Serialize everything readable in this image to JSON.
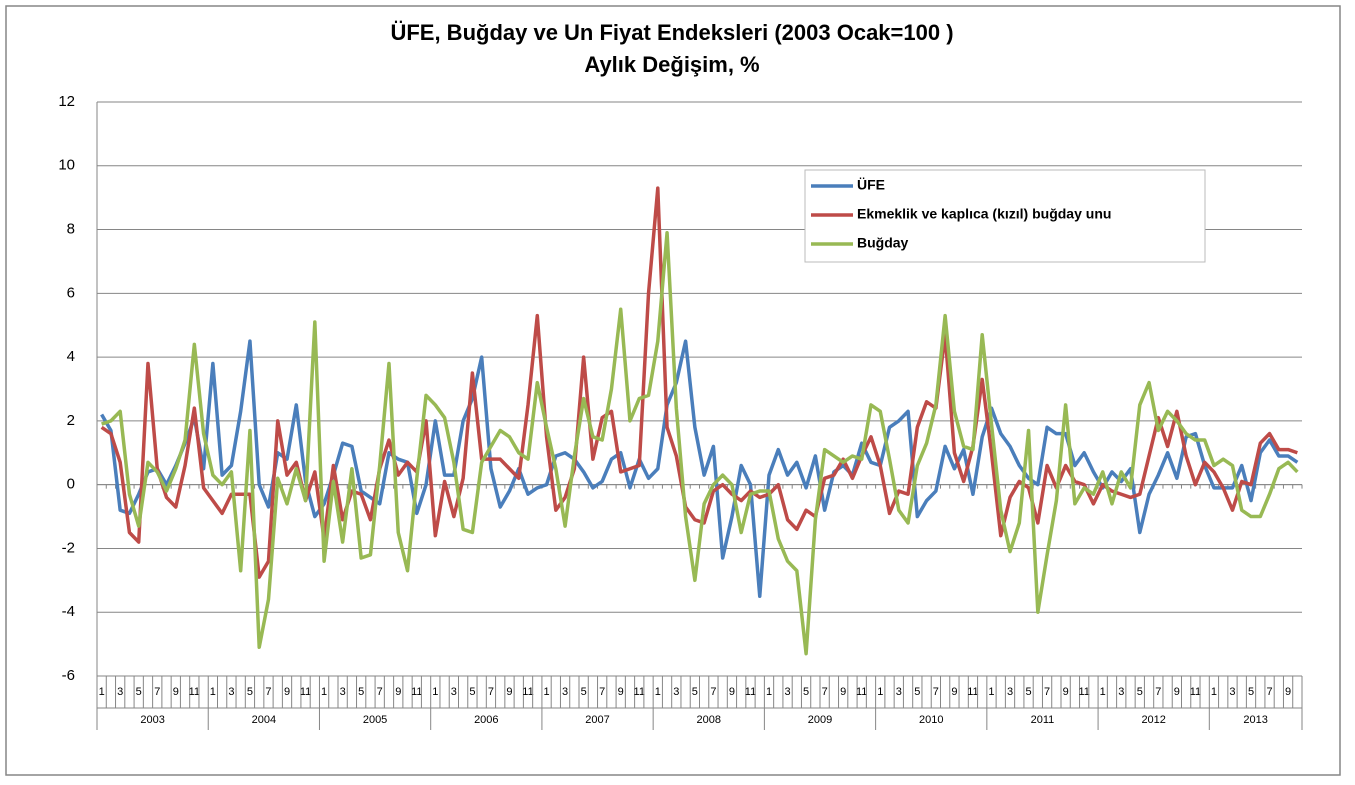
{
  "chart_data": {
    "type": "line",
    "title": "ÜFE, Buğday ve Un Fiyat Endeksleri (2003 Ocak=100 )",
    "subtitle": "Aylık Değişim, %",
    "categories": [
      "1",
      null,
      "3",
      null,
      "5",
      null,
      "7",
      null,
      "9",
      null,
      "11",
      null,
      "1",
      null,
      "3",
      null,
      "5",
      null,
      "7",
      null,
      "9",
      null,
      "11",
      null,
      "1",
      null,
      "3",
      null,
      "5",
      null,
      "7",
      null,
      "9",
      null,
      "11",
      null,
      "1",
      null,
      "3",
      null,
      "5",
      null,
      "7",
      null,
      "9",
      null,
      "11",
      null,
      "1",
      null,
      "3",
      null,
      "5",
      null,
      "7",
      null,
      "9",
      null,
      "11",
      null,
      "1",
      null,
      "3",
      null,
      "5",
      null,
      "7",
      null,
      "9",
      null,
      "11",
      null,
      "1",
      null,
      "3",
      null,
      "5",
      null,
      "7",
      null,
      "9",
      null,
      "11",
      null,
      "1",
      null,
      "3",
      null,
      "5",
      null,
      "7",
      null,
      "9",
      null,
      "11",
      null,
      "1",
      null,
      "3",
      null,
      "5",
      null,
      "7",
      null,
      "9",
      null,
      "11",
      null,
      "1",
      null,
      "3",
      null,
      "5",
      null,
      "7",
      null,
      "9",
      null,
      "11",
      null,
      "1",
      null,
      "3",
      null,
      "5",
      null,
      "7",
      null,
      "9",
      null
    ],
    "years": [
      "2003",
      "2004",
      "2005",
      "2006",
      "2007",
      "2008",
      "2009",
      "2010",
      "2011",
      "2012",
      "2013"
    ],
    "series": [
      {
        "name": "ÜFE",
        "color": "#4a7ebb",
        "values": [
          2.2,
          1.7,
          -0.8,
          -0.9,
          -0.3,
          0.4,
          0.5,
          0.0,
          0.6,
          1.3,
          2.1,
          0.5,
          3.8,
          0.3,
          0.6,
          2.3,
          4.5,
          0.0,
          -0.7,
          1.0,
          0.8,
          2.5,
          0.1,
          -1.0,
          -0.6,
          0.3,
          1.3,
          1.2,
          -0.2,
          -0.4,
          -0.6,
          1.0,
          0.8,
          0.7,
          -0.9,
          0.0,
          2.0,
          0.3,
          0.3,
          2.0,
          2.7,
          4.0,
          0.5,
          -0.7,
          -0.2,
          0.5,
          -0.3,
          -0.1,
          0.0,
          0.9,
          1.0,
          0.8,
          0.4,
          -0.1,
          0.1,
          0.8,
          1.0,
          -0.1,
          0.8,
          0.2,
          0.5,
          2.5,
          3.2,
          4.5,
          1.8,
          0.3,
          1.2,
          -2.3,
          -1.0,
          0.6,
          0.0,
          -3.5,
          0.3,
          1.1,
          0.3,
          0.7,
          -0.1,
          0.9,
          -0.8,
          0.4,
          0.6,
          0.3,
          1.3,
          0.7,
          0.6,
          1.8,
          2.0,
          2.3,
          -1.0,
          -0.5,
          -0.2,
          1.2,
          0.5,
          1.1,
          -0.3,
          1.5,
          2.4,
          1.6,
          1.2,
          0.6,
          0.2,
          0.0,
          1.8,
          1.6,
          1.6,
          0.6,
          1.0,
          0.4,
          -0.1,
          0.4,
          0.1,
          0.5,
          -1.5,
          -0.3,
          0.3,
          1.0,
          0.2,
          1.5,
          1.6,
          0.6,
          -0.1,
          -0.1,
          -0.1,
          0.6,
          -0.5,
          1.0,
          1.4,
          0.9,
          0.9,
          0.7
        ]
      },
      {
        "name": "Ekmeklik ve kaplıca (kızıl) buğday unu",
        "color": "#be4b48",
        "values": [
          1.8,
          1.6,
          0.7,
          -1.5,
          -1.8,
          3.8,
          0.5,
          -0.4,
          -0.7,
          0.6,
          2.4,
          -0.1,
          -0.5,
          -0.9,
          -0.3,
          -0.3,
          -0.3,
          -2.9,
          -2.4,
          2.0,
          0.3,
          0.7,
          -0.5,
          0.4,
          -1.7,
          0.6,
          -1.1,
          -0.2,
          -0.3,
          -1.1,
          0.5,
          1.4,
          0.3,
          0.7,
          0.4,
          2.0,
          -1.6,
          0.1,
          -1.0,
          0.2,
          3.5,
          0.8,
          0.8,
          0.8,
          0.5,
          0.2,
          2.5,
          5.3,
          1.5,
          -0.8,
          -0.4,
          0.5,
          4.0,
          0.8,
          2.1,
          2.3,
          0.4,
          0.5,
          0.6,
          6.0,
          9.3,
          1.8,
          0.9,
          -0.7,
          -1.1,
          -1.2,
          -0.2,
          0.0,
          -0.3,
          -0.5,
          -0.2,
          -0.4,
          -0.3,
          0.0,
          -1.1,
          -1.4,
          -0.8,
          -1.0,
          0.2,
          0.3,
          0.8,
          0.2,
          0.9,
          1.5,
          0.6,
          -0.9,
          -0.2,
          -0.3,
          1.8,
          2.6,
          2.4,
          4.7,
          1.0,
          0.1,
          1.2,
          3.3,
          1.0,
          -1.6,
          -0.4,
          0.1,
          -0.1,
          -1.2,
          0.6,
          -0.1,
          0.6,
          0.1,
          0.0,
          -0.6,
          0.0,
          -0.2,
          -0.3,
          -0.4,
          -0.3,
          0.9,
          2.1,
          1.2,
          2.3,
          0.9,
          0.0,
          0.7,
          0.4,
          -0.1,
          -0.8,
          0.1,
          0.0,
          1.3,
          1.6,
          1.1,
          1.1,
          1.0
        ]
      },
      {
        "name": "Buğday",
        "color": "#98b954",
        "values": [
          1.9,
          2.0,
          2.3,
          -0.3,
          -1.3,
          0.7,
          0.4,
          -0.2,
          0.5,
          1.4,
          4.4,
          1.6,
          0.3,
          0.0,
          0.4,
          -2.7,
          1.7,
          -5.1,
          -3.6,
          0.2,
          -0.6,
          0.5,
          -0.5,
          5.1,
          -2.4,
          0.1,
          -1.8,
          0.5,
          -2.3,
          -2.2,
          0.6,
          3.8,
          -1.5,
          -2.7,
          0.2,
          2.8,
          2.5,
          2.1,
          0.7,
          -1.4,
          -1.5,
          0.7,
          1.2,
          1.7,
          1.5,
          1.0,
          0.8,
          3.2,
          1.8,
          0.5,
          -1.3,
          0.9,
          2.7,
          1.5,
          1.4,
          3.0,
          5.5,
          2.0,
          2.7,
          2.8,
          4.5,
          7.9,
          2.4,
          -1.0,
          -3.0,
          -0.6,
          0.0,
          0.3,
          0.0,
          -1.5,
          -0.3,
          -0.2,
          -0.2,
          -1.7,
          -2.4,
          -2.7,
          -5.3,
          -1.1,
          1.1,
          0.9,
          0.7,
          0.9,
          0.8,
          2.5,
          2.3,
          0.8,
          -0.8,
          -1.2,
          0.6,
          1.3,
          2.5,
          5.3,
          2.3,
          1.2,
          1.1,
          4.7,
          1.9,
          -0.8,
          -2.1,
          -1.2,
          1.7,
          -4.0,
          -2.2,
          -0.5,
          2.5,
          -0.6,
          -0.1,
          -0.3,
          0.4,
          -0.6,
          0.4,
          -0.1,
          2.5,
          3.2,
          1.7,
          2.3,
          2.0,
          1.6,
          1.4,
          1.4,
          0.6,
          0.8,
          0.6,
          -0.8,
          -1.0,
          -1.0,
          -0.3,
          0.5,
          0.7,
          0.4
        ]
      }
    ],
    "ylim": [
      -6,
      12
    ],
    "yticks": [
      -6,
      -4,
      -2,
      0,
      2,
      4,
      6,
      8,
      10,
      12
    ],
    "grid": true,
    "legend": "upper right"
  }
}
